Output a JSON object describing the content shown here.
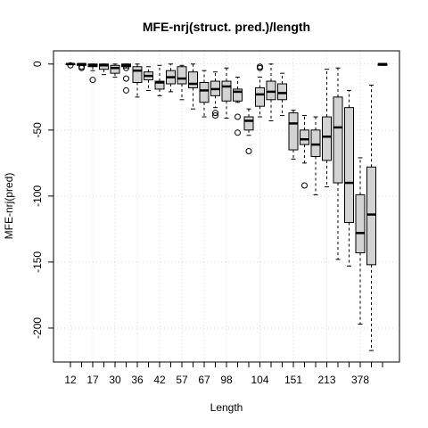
{
  "chart_data": {
    "type": "box",
    "title": "MFE-nrj(struct. pred.)/length",
    "x_label": "Length",
    "y_label": "MFE-nrj(pred)",
    "categories": [
      "12",
      null,
      "17",
      null,
      "30",
      null,
      "36",
      null,
      "42",
      null,
      "57",
      null,
      "67",
      null,
      "98",
      null,
      null,
      "104",
      null,
      null,
      "151",
      null,
      null,
      "213",
      null,
      null,
      "378",
      null,
      null
    ],
    "ylim": [
      -225.7,
      10
    ],
    "yticks": [
      0,
      -50,
      -100,
      -150,
      -200
    ],
    "grid": true,
    "color": "#d3d3d3",
    "boxes": [
      {
        "min": -0.5,
        "q1": -0.5,
        "median": 0,
        "q3": 0,
        "max": 0,
        "outliers": [
          -1
        ]
      },
      {
        "min": -1,
        "q1": -1,
        "median": 0,
        "q3": 0,
        "max": 0,
        "outliers": [
          -2,
          -3
        ]
      },
      {
        "min": -5,
        "q1": -2,
        "median": -1,
        "q3": 0,
        "max": 0,
        "outliers": [
          -12
        ]
      },
      {
        "min": -8,
        "q1": -4,
        "median": -1,
        "q3": 0,
        "max": 0,
        "outliers": []
      },
      {
        "min": -10,
        "q1": -7,
        "median": -3,
        "q3": -1,
        "max": 0,
        "outliers": []
      },
      {
        "min": -3,
        "q1": -2,
        "median": -1,
        "q3": 0,
        "max": 0,
        "outliers": [
          -3,
          -11,
          -20
        ]
      },
      {
        "min": -25,
        "q1": -14,
        "median": -5,
        "q3": -2,
        "max": 0,
        "outliers": []
      },
      {
        "min": -20,
        "q1": -12,
        "median": -9,
        "q3": -6,
        "max": -2,
        "outliers": []
      },
      {
        "min": -24,
        "q1": -19,
        "median": -14,
        "q3": -13,
        "max": -1,
        "outliers": []
      },
      {
        "min": -21,
        "q1": -15,
        "median": -10,
        "q3": -5,
        "max": 0,
        "outliers": []
      },
      {
        "min": -27,
        "q1": -15,
        "median": -11,
        "q3": -2,
        "max": -1,
        "outliers": []
      },
      {
        "min": -34,
        "q1": -18,
        "median": -15,
        "q3": -6,
        "max": 0,
        "outliers": []
      },
      {
        "min": -40,
        "q1": -29,
        "median": -20,
        "q3": -14,
        "max": -5,
        "outliers": []
      },
      {
        "min": -33,
        "q1": -24,
        "median": -19,
        "q3": -13,
        "max": -6,
        "outliers": [
          -37,
          -39
        ]
      },
      {
        "min": -41,
        "q1": -28,
        "median": -17,
        "q3": -13,
        "max": -3,
        "outliers": []
      },
      {
        "min": -29,
        "q1": -28,
        "median": -21,
        "q3": -19,
        "max": -10,
        "outliers": [
          -40,
          -52
        ]
      },
      {
        "min": -54,
        "q1": -50,
        "median": -43,
        "q3": -40,
        "max": -34,
        "outliers": [
          -66
        ]
      },
      {
        "min": -40,
        "q1": -32,
        "median": -23,
        "q3": -18,
        "max": -10,
        "outliers": [
          -3,
          -2
        ]
      },
      {
        "min": -43,
        "q1": -27,
        "median": -21,
        "q3": -13,
        "max": 0,
        "outliers": []
      },
      {
        "min": -39,
        "q1": -27,
        "median": -22,
        "q3": -15,
        "max": -7,
        "outliers": []
      },
      {
        "min": -72,
        "q1": -65,
        "median": -45,
        "q3": -37,
        "max": -35,
        "outliers": []
      },
      {
        "min": -75,
        "q1": -61,
        "median": -57,
        "q3": -50,
        "max": -39,
        "outliers": [
          -92
        ]
      },
      {
        "min": -99,
        "q1": -70,
        "median": -61,
        "q3": -50,
        "max": -40,
        "outliers": []
      },
      {
        "min": -93,
        "q1": -73,
        "median": -55,
        "q3": -40,
        "max": -4,
        "outliers": []
      },
      {
        "min": -148,
        "q1": -90,
        "median": -48,
        "q3": -25,
        "max": -3,
        "outliers": []
      },
      {
        "min": -153,
        "q1": -120,
        "median": -90,
        "q3": -33,
        "max": -20,
        "outliers": []
      },
      {
        "min": -197,
        "q1": -143,
        "median": -128,
        "q3": -99,
        "max": -71,
        "outliers": []
      },
      {
        "min": -217,
        "q1": -152,
        "median": -114,
        "q3": -78,
        "max": -16,
        "outliers": []
      },
      {
        "min": -1,
        "q1": -1,
        "median": 0,
        "q3": 0,
        "max": 0,
        "outliers": []
      }
    ]
  }
}
